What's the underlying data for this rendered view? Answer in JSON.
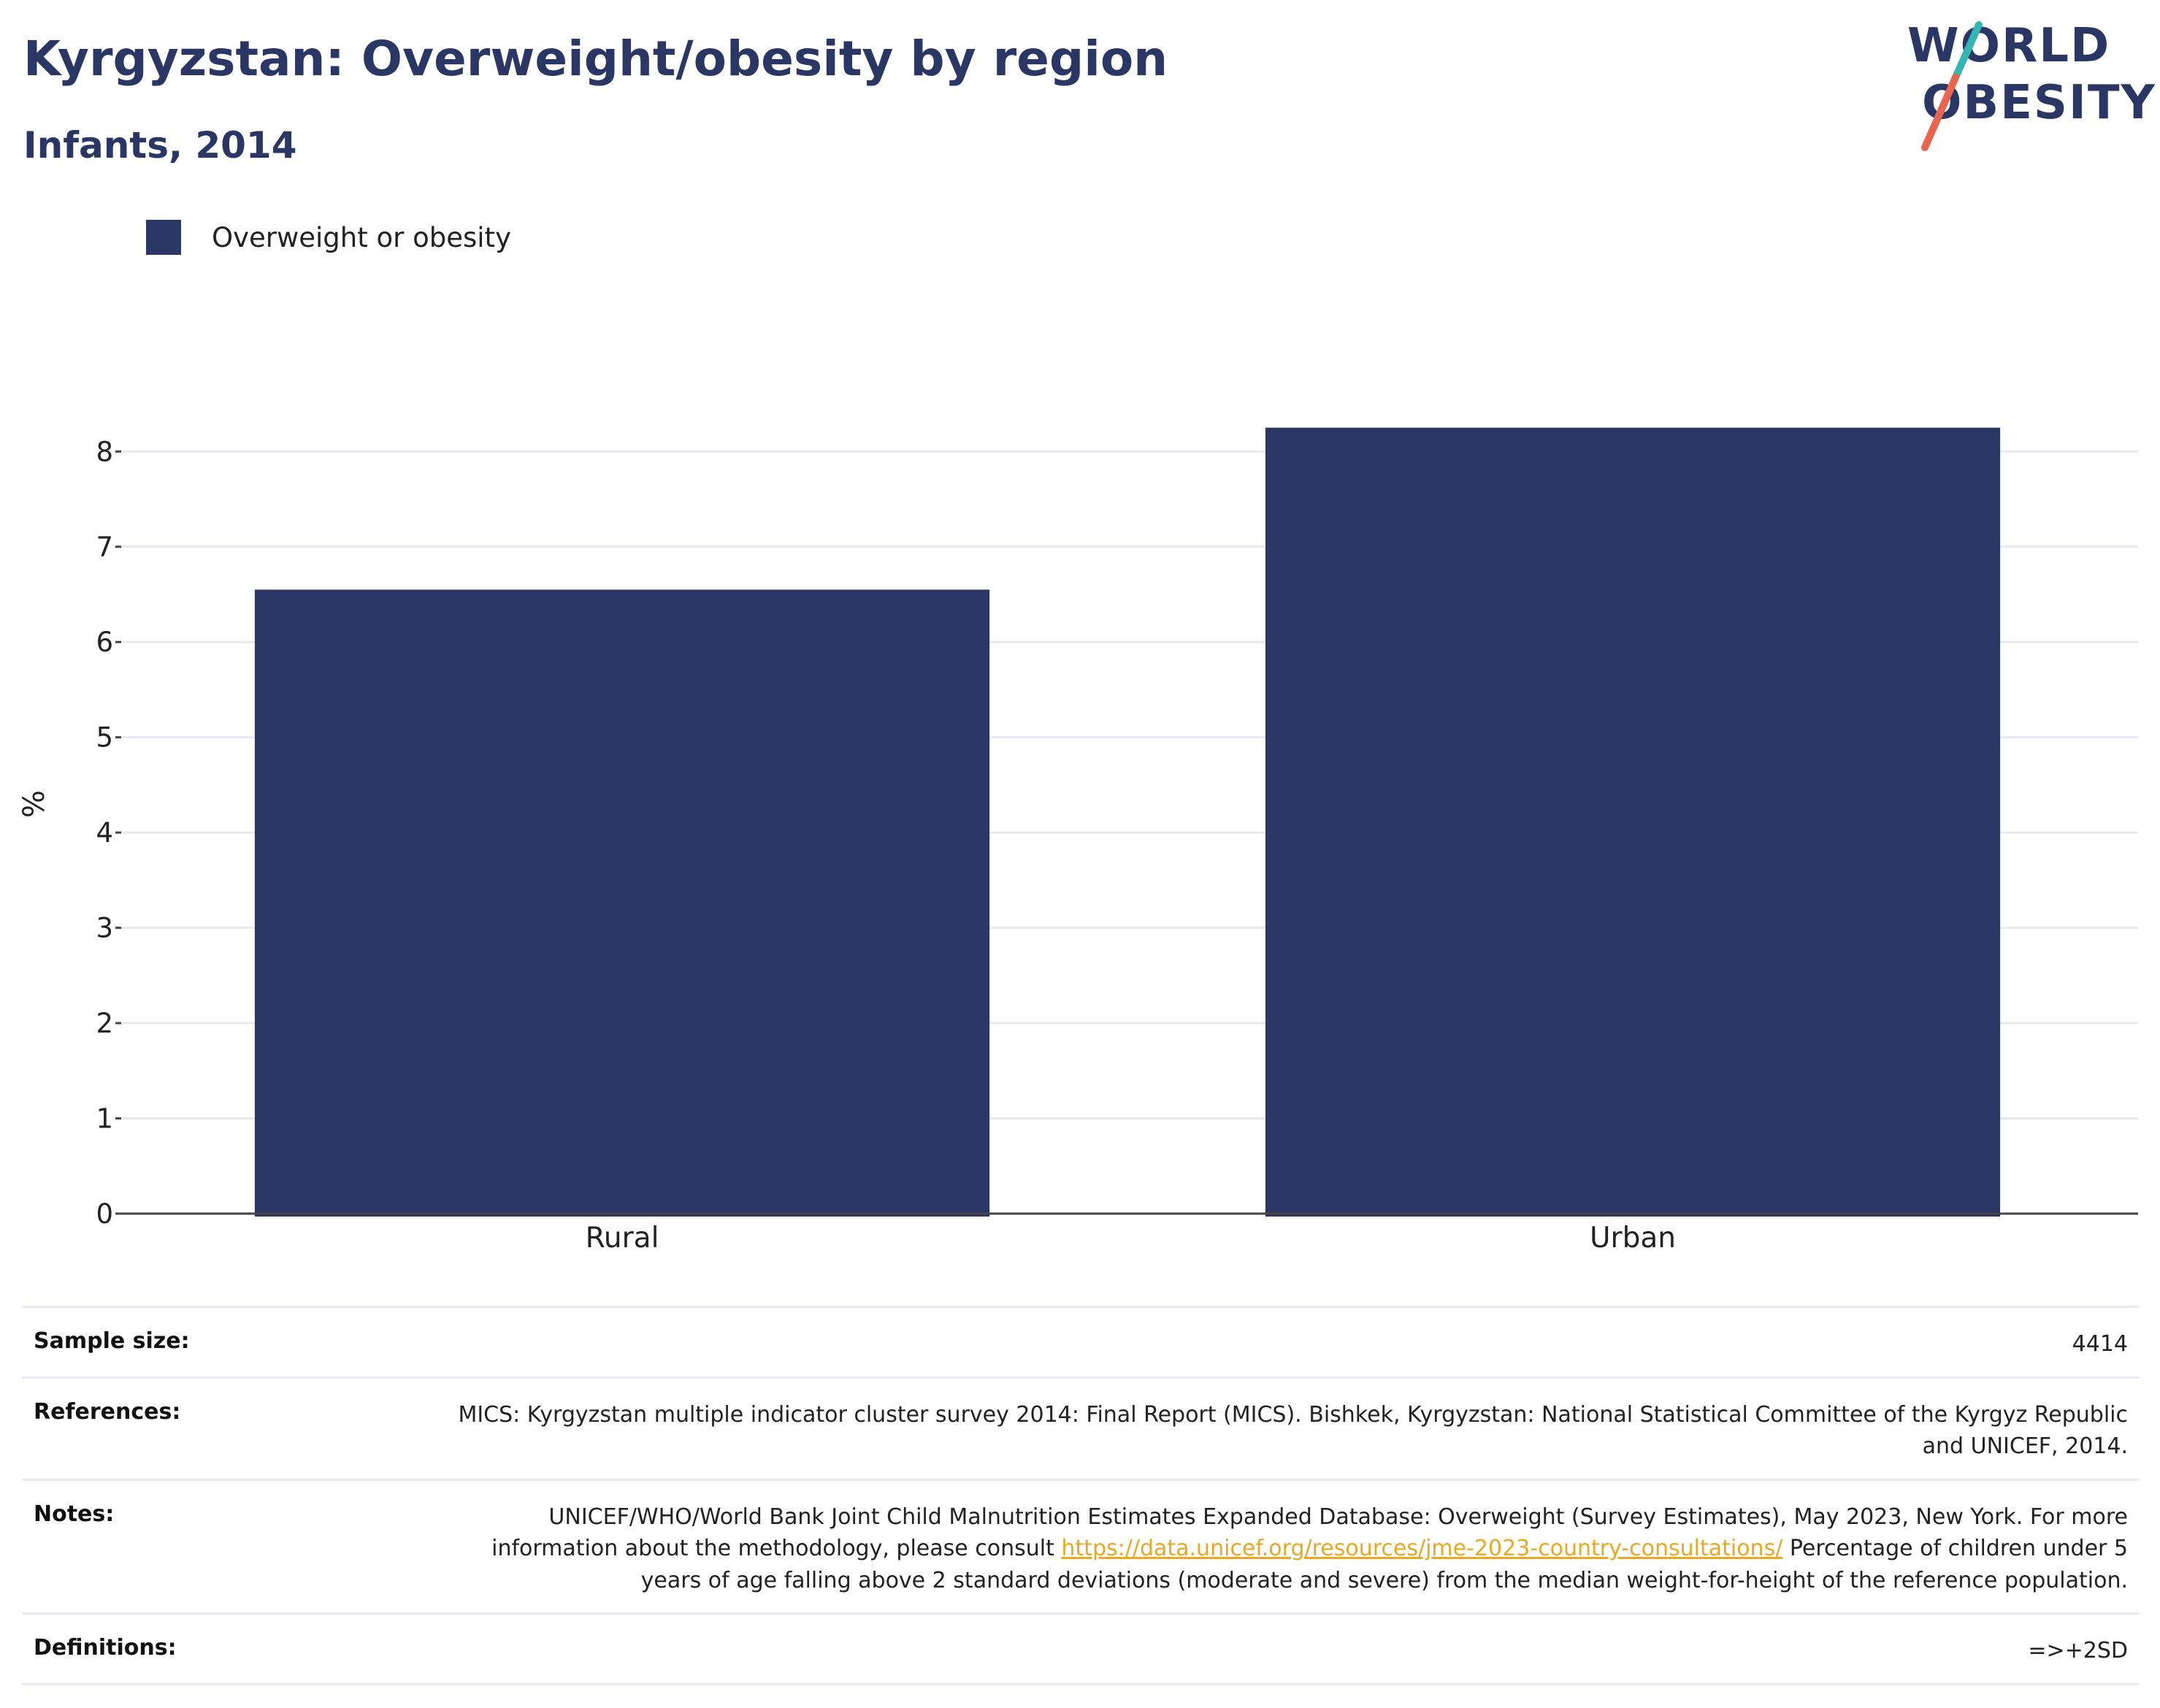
{
  "title": "Kyrgyzstan: Overweight/obesity by region",
  "subtitle": "Infants, 2014",
  "logo": {
    "line1": "WORLD",
    "line2": "OBESITY",
    "accent_colors": [
      "#35b6b4",
      "#e8664f"
    ]
  },
  "colors": {
    "bar": "#2a3663",
    "title": "#2a3663",
    "link": "#e8a924",
    "grid": "#e6e9f0"
  },
  "legend": [
    {
      "label": "Overweight or obesity",
      "color": "#2a3663"
    }
  ],
  "chart_data": {
    "type": "bar",
    "categories": [
      "Rural",
      "Urban"
    ],
    "series": [
      {
        "name": "Overweight or obesity",
        "values": [
          6.55,
          8.25
        ]
      }
    ],
    "ylabel": "%",
    "xlabel": "",
    "ylim": [
      0,
      8.6
    ],
    "yticks": [
      0,
      1,
      2,
      3,
      4,
      5,
      6,
      7,
      8
    ],
    "grid": true,
    "legend_position": "top-left"
  },
  "info": {
    "sample_size": {
      "label": "Sample size:",
      "value": "4414"
    },
    "references": {
      "label": "References:",
      "value": "MICS: Kyrgyzstan multiple indicator cluster survey 2014: Final Report (MICS). Bishkek, Kyrgyzstan: National Statistical Committee of the Kyrgyz Republic and UNICEF, 2014."
    },
    "notes": {
      "label": "Notes:",
      "text_before": "UNICEF/WHO/World Bank Joint Child Malnutrition Estimates Expanded Database: Overweight (Survey Estimates), May 2023, New York. For more information about the methodology, please consult ",
      "link": "https://data.unicef.org/resources/jme-2023-country-consultations/",
      "text_after": " Percentage of children under 5 years of age falling above 2 standard deviations (moderate and severe) from the median weight-for-height of the reference population."
    },
    "definitions": {
      "label": "Definitions:",
      "value": "=>+2SD"
    }
  }
}
